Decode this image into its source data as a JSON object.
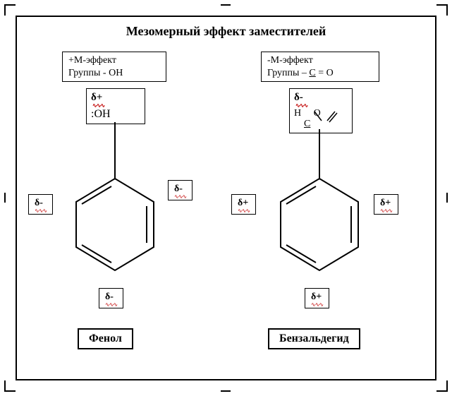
{
  "title": "Мезомерный эффект заместителей",
  "left": {
    "header": "+М-эффект\nГруппы - ОН",
    "sub_delta": "δ+",
    "sub_text": ":ОН",
    "ortho_left": "δ-",
    "ortho_right": "δ-",
    "para": "δ-",
    "name": "Фенол"
  },
  "right": {
    "header": "-М-эффект\nГруппы – С = О",
    "header_html": "-М-эффект<br>Группы – <span class=\"underline\">С</span> = О",
    "sub_delta": "δ-",
    "sub_html": "Н&nbsp;&nbsp;&nbsp;&nbsp;&nbsp;О<br>&nbsp;&nbsp;&nbsp;&nbsp;<span class=\"underline\">С</span>",
    "ortho_left": "δ+",
    "ortho_right": "δ+",
    "para": "δ+",
    "name": "Бензальдегид"
  },
  "squiggle": "∿∿∿",
  "colors": {
    "squiggle": "#c00000",
    "line": "#000000",
    "bg": "#ffffff"
  }
}
